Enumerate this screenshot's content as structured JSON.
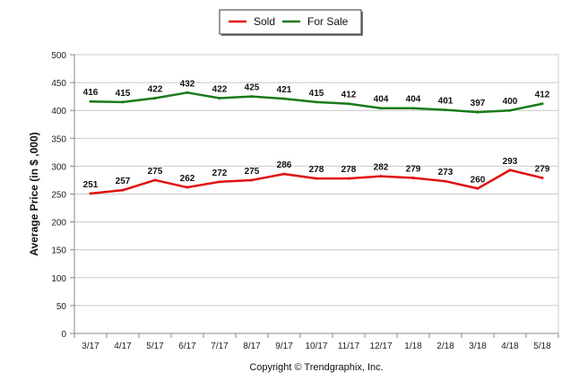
{
  "chart_data": {
    "type": "line",
    "categories": [
      "3/17",
      "4/17",
      "5/17",
      "6/17",
      "7/17",
      "8/17",
      "9/17",
      "10/17",
      "11/17",
      "12/17",
      "1/18",
      "2/18",
      "3/18",
      "4/18",
      "5/18"
    ],
    "series": [
      {
        "name": "Sold",
        "color": "#e01010",
        "values": [
          251,
          257,
          275,
          262,
          272,
          275,
          286,
          278,
          278,
          282,
          279,
          273,
          260,
          293,
          279
        ]
      },
      {
        "name": "For Sale",
        "color": "#1a7a1a",
        "values": [
          416,
          415,
          422,
          432,
          422,
          425,
          421,
          415,
          412,
          404,
          404,
          401,
          397,
          400,
          412
        ]
      }
    ],
    "ylabel": "Average Price (in $ ,000)",
    "xlabel": "",
    "ylim": [
      0,
      500
    ],
    "yticks": [
      0,
      50,
      100,
      150,
      200,
      250,
      300,
      350,
      400,
      450,
      500
    ],
    "grid": true,
    "legend_position": "top-center",
    "copyright": "Copyright © Trendgraphix, Inc."
  }
}
